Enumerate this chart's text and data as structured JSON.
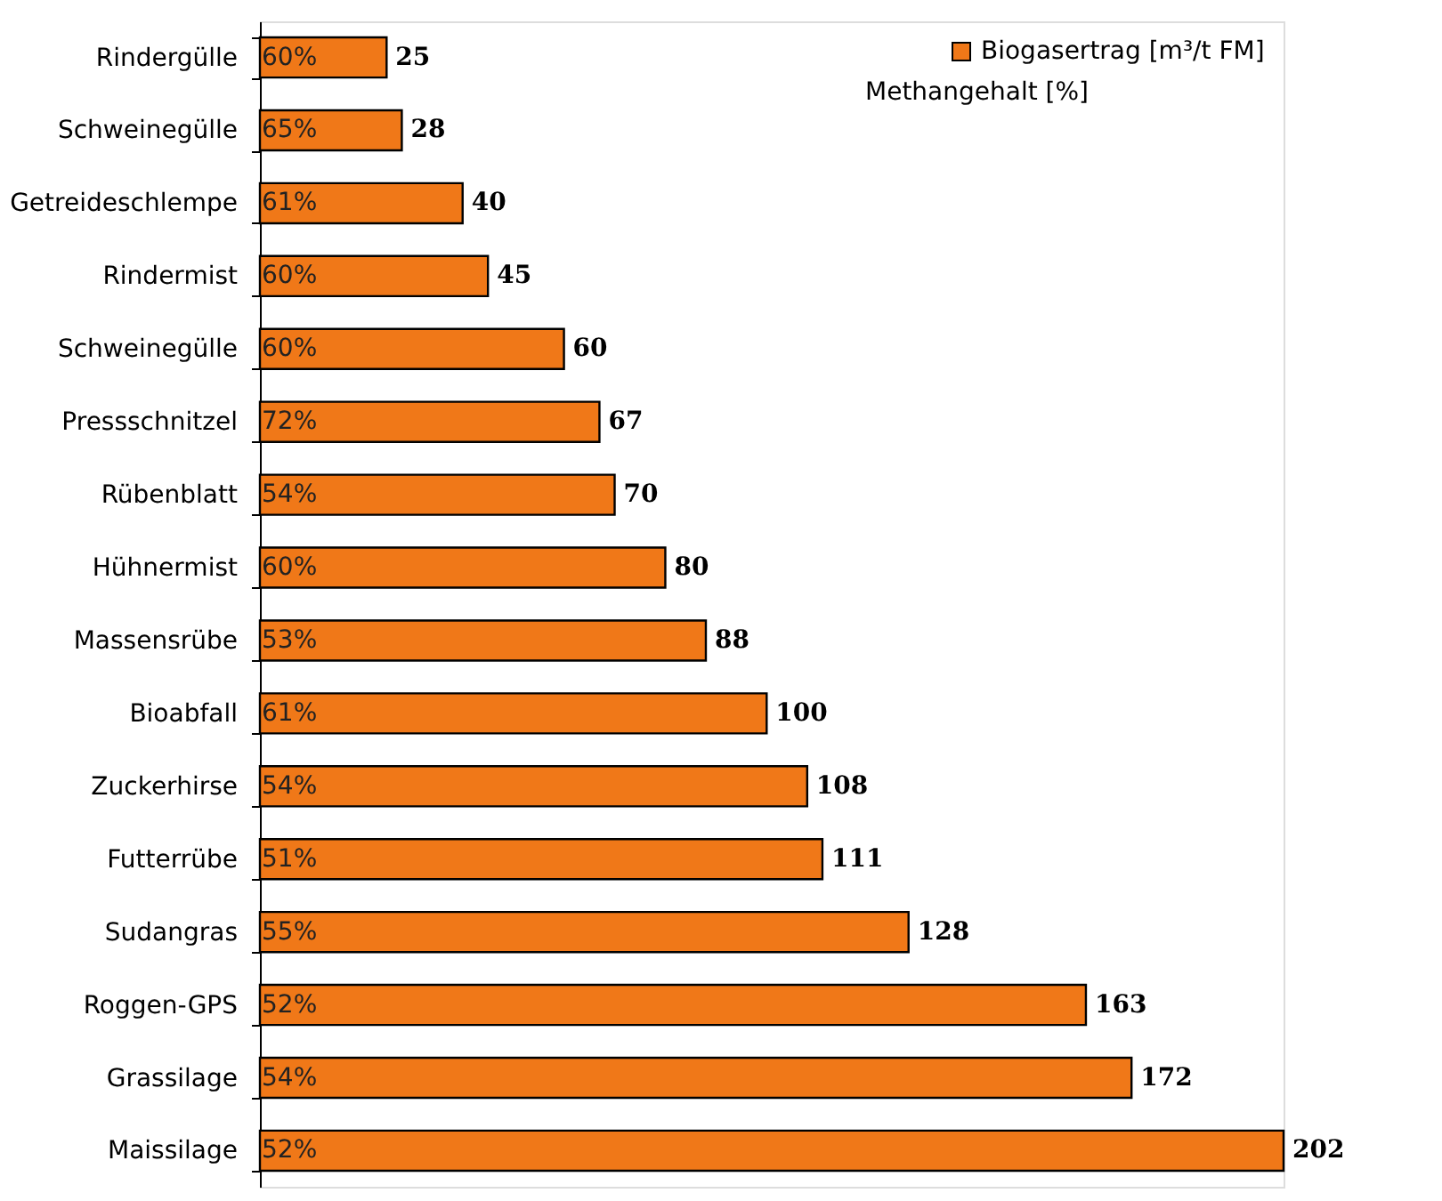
{
  "chart_data": {
    "type": "bar",
    "orientation": "horizontal",
    "categories": [
      "Rindergülle",
      "Schweinegülle",
      "Getreideschlempe",
      "Rindermist",
      "Schweinegülle",
      "Pressschnitzel",
      "Rübenblatt",
      "Hühnermist",
      "Massensrübe",
      "Bioabfall",
      "Zuckerhirse",
      "Futterrübe",
      "Sudangras",
      "Roggen-GPS",
      "Grassilage",
      "Maissilage"
    ],
    "series": [
      {
        "name": "Biogasertrag [m³/t FM]",
        "color": "#f07818",
        "values": [
          25,
          28,
          40,
          45,
          60,
          67,
          70,
          80,
          88,
          100,
          108,
          111,
          128,
          163,
          172,
          202
        ]
      }
    ],
    "data_labels": true,
    "legend": "top right",
    "grid": false,
    "annotations": [
      "Methangehalt [%]",
      "60%",
      "65%",
      "61%",
      "60%",
      "60%",
      "72%",
      "54%",
      "60%",
      "53%",
      "61%",
      "54%",
      "51%",
      "55%",
      "52%",
      "54%",
      "52%"
    ]
  }
}
